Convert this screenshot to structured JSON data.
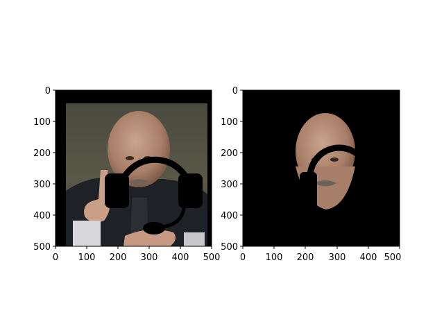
{
  "figure": {
    "panels": [
      {
        "name": "left",
        "x_ticks": [
          "0",
          "100",
          "200",
          "300",
          "400",
          "500"
        ],
        "y_ticks": [
          "0",
          "100",
          "200",
          "300",
          "400",
          "500"
        ],
        "xlim": [
          0,
          500
        ],
        "ylim": [
          500,
          0
        ],
        "content": "photo-with-headset-overlay"
      },
      {
        "name": "right",
        "x_ticks": [
          "0",
          "100",
          "200",
          "300",
          "400",
          "500"
        ],
        "y_ticks": [
          "0",
          "100",
          "200",
          "300",
          "400",
          "500"
        ],
        "xlim": [
          0,
          500
        ],
        "ylim": [
          500,
          0
        ],
        "content": "segmented-face-on-black"
      }
    ],
    "colors": {
      "background": "#000000",
      "overlay": "#000000",
      "axis": "#000000"
    }
  }
}
